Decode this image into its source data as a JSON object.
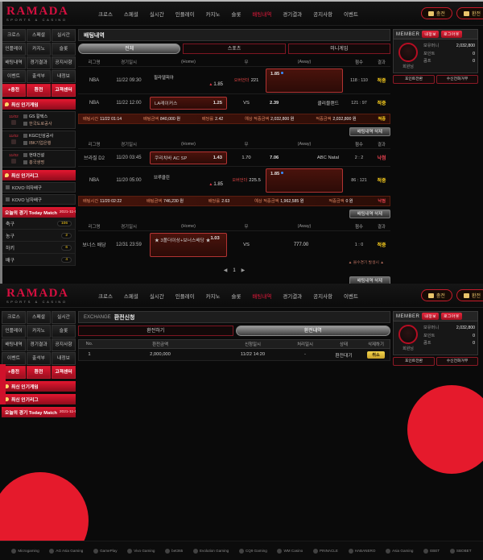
{
  "brand": {
    "name": "RAMADA",
    "tagline": "SPORTS & CASINO"
  },
  "nav": {
    "items": [
      "크로스",
      "스페셜",
      "실시간",
      "인플레이",
      "카지노",
      "슬롯",
      "배팅내역",
      "경기결과",
      "공지사항",
      "이벤트"
    ],
    "active": "배팅내역",
    "charge": "충전",
    "exchange": "환전"
  },
  "sidebar": {
    "menu": [
      "크로스",
      "스페셜",
      "실시간",
      "인플레이",
      "카지노",
      "슬롯",
      "배팅내역",
      "경기결과",
      "공지사항",
      "이벤트",
      "출석부",
      "내정보"
    ],
    "quick": [
      "+충전",
      "환전",
      "고객센터"
    ],
    "popular_games_title": "최신 인기게임",
    "popular_games": [
      {
        "date": "11/02",
        "home": "GS 칼텍스",
        "away": "한국도로공사"
      },
      {
        "date": "11/02",
        "home": "KGC인삼공사",
        "away": "IBK기업은행"
      },
      {
        "date": "11/02",
        "home": "현대건설",
        "away": "흥국생명"
      }
    ],
    "popular_leagues_title": "최신 인기리그",
    "popular_leagues": [
      "KOVO 여자배구",
      "KOVO 남자배구"
    ],
    "today": {
      "title": "오늘의 경기 Today Match",
      "date": "2021-11-02",
      "sports": [
        {
          "name": "축구",
          "count": "106"
        },
        {
          "name": "농구",
          "count": "2"
        },
        {
          "name": "하키",
          "count": "6"
        },
        {
          "name": "배구",
          "count": "4"
        }
      ]
    }
  },
  "member": {
    "title": "MEMBER",
    "myinfo": "내정보",
    "logout": "로그아웃",
    "greeting": "회원님",
    "rows": [
      {
        "label": "보유머니",
        "value": "2,032,800"
      },
      {
        "label": "포인트",
        "value": "0"
      },
      {
        "label": "콤프",
        "value": "0"
      }
    ],
    "actions": [
      "포인트전환",
      "수신전화거부"
    ]
  },
  "betting": {
    "title": "배팅내역",
    "tabs": [
      "전체",
      "스포츠",
      "미니게임"
    ],
    "columns": [
      "리그명",
      "경기일시",
      "(Home)",
      "무",
      "(Away)",
      "점수",
      "결과"
    ],
    "delete_label": "배팅내역 삭제",
    "summary_labels": {
      "time": "배팅시간",
      "amount": "배팅금액",
      "rate": "배당률",
      "expected": "예상 적중금액",
      "win": "적중금액"
    },
    "note": "▲ 몰수경기 발생시 ▲",
    "pager": {
      "prev": "◀",
      "page": "1",
      "next": "▶"
    },
    "groups": [
      {
        "rows": [
          {
            "league": "NBA",
            "datetime": "11/22 09:30",
            "home_team": "필라델피아",
            "home_odds": "1.85",
            "draw_label": "오버언더",
            "draw_value": "221",
            "away_odds": "1.85",
            "score": "118 : 110",
            "result": "적중"
          },
          {
            "league": "NBA",
            "datetime": "11/22 12:00",
            "home_team": "LA레이커스",
            "home_odds": "1.25",
            "draw_value": "VS",
            "away_team": "클리블랜드",
            "away_odds": "2.39",
            "score": "121 : 97",
            "result": "적중"
          }
        ],
        "summary": {
          "time": "11/22 01:14",
          "amount": "840,000 원",
          "rate": "2.42",
          "expected": "2,032,800 원",
          "win": "2,032,800 원",
          "result": "적중"
        }
      },
      {
        "rows": [
          {
            "league": "브라질 D2",
            "datetime": "11/20 03:45",
            "home_team": "쿠리치바 AC SP",
            "home_odds": "1.43",
            "draw_value": "1.70",
            "away_team": "ABC Natal",
            "away_odds": "7.06",
            "score": "2 : 2",
            "result": "낙첨"
          },
          {
            "league": "NBA",
            "datetime": "11/20 05:00",
            "home_team": "브루클린",
            "home_odds": "1.85",
            "draw_label": "오버언더",
            "draw_value": "225.5",
            "away_odds": "1.85",
            "score": "86 : 121",
            "result": "적중"
          }
        ],
        "summary": {
          "time": "11/20 02:22",
          "amount": "746,230 원",
          "rate": "2.63",
          "expected": "1,962,585 원",
          "win": "0 원",
          "result": "낙첨"
        }
      },
      {
        "rows": [
          {
            "league": "보너스 배당",
            "datetime": "12/31 23:59",
            "home_team": "★ 3폴더이상+보너스배당 ★",
            "home_odds": "1.03",
            "draw_value": "VS",
            "away_odds": "777.00",
            "score": "1 : 0",
            "result": "적중"
          }
        ]
      }
    ]
  },
  "exchange_page": {
    "title_en": "EXCHANGE",
    "title": "환전신청",
    "tabs": [
      "환전하기",
      "환전내역"
    ],
    "columns": [
      "No.",
      "환전금액",
      "신청일시",
      "처리일시",
      "상태",
      "삭제하기"
    ],
    "row": {
      "no": "1",
      "amount": "2,000,000",
      "requested": "11/22 14:20",
      "processed": "-",
      "status": "환전대기",
      "action": "취소"
    }
  },
  "footer": {
    "partners": [
      "Microgaming",
      "AG Asia Gaming",
      "GamePlay",
      "Vivo Gaming",
      "bet365",
      "Evolution Gaming",
      "CQ9 Gaming",
      "WM Casino",
      "PINNACLE",
      "HABANERO",
      "Asia Gaming",
      "EBET",
      "SBOBET"
    ]
  }
}
